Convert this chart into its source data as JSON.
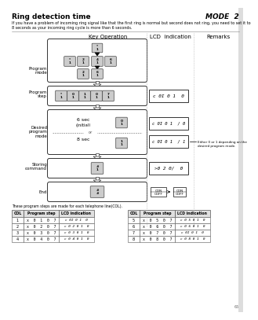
{
  "title": "Ring detection time",
  "mode_label": "MODE  2",
  "description": "If you have a problem of incoming ring signal like that the first ring is normal but second does not ring, you need to set it to\n8 seconds as your incoming ring cycle is more than 6 seconds.",
  "col_header": "Key Operation",
  "lcd_header": "LCD  indication",
  "remarks_header": "Remarks",
  "remark_text": "Either 0 or 1 depending on the\ndesired program mode.",
  "table_note": "These program steps are made for each telephone line(COL).",
  "table_left": {
    "headers": [
      "COL",
      "Program step",
      "LCD indication"
    ],
    "rows": [
      [
        "1",
        "x  0  1  0  7",
        "c 0I 0 1  0"
      ],
      [
        "2",
        "x  0  2  0  7",
        "c 0 2 0 1  0"
      ],
      [
        "3",
        "x  0  3  0  7",
        "c 0 3 0 1  0"
      ],
      [
        "4",
        "x  0  4  0  7",
        "c 0 4 0 1  0"
      ]
    ]
  },
  "table_right": {
    "headers": [
      "COL",
      "Program step",
      "LCD indication"
    ],
    "rows": [
      [
        "5",
        "x  0  5  0  7",
        "c 0 5 0 1  0"
      ],
      [
        "6",
        "x  0  6  0  7",
        "c 0 6 0 1  0"
      ],
      [
        "7",
        "x  0  7  0  7",
        "c 0I 0 1  0"
      ],
      [
        "8",
        "x  0  8  0  7",
        "c 0 8 0 1  0"
      ]
    ]
  },
  "page_num": "65"
}
